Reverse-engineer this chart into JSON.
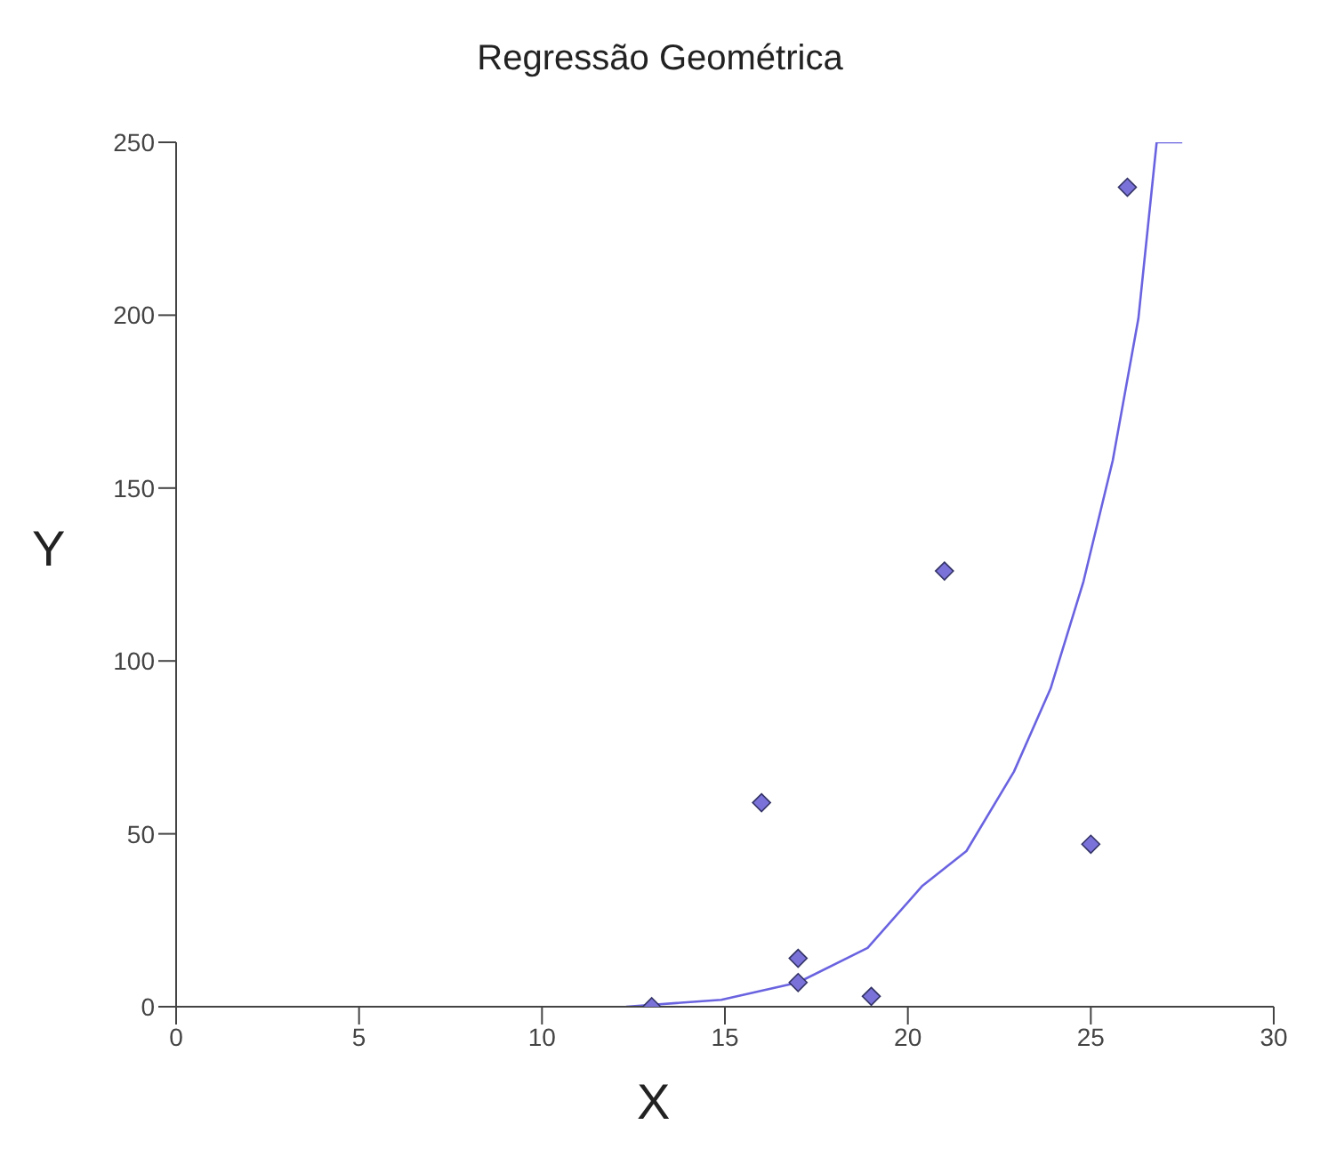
{
  "chart_data": {
    "type": "scatter",
    "title": "Regressão Geométrica",
    "xlabel": "X",
    "ylabel": "Y",
    "xlim": [
      0,
      30
    ],
    "xticks": [
      0,
      5,
      10,
      15,
      20,
      25,
      30
    ],
    "ylim": [
      0,
      250
    ],
    "yticks": [
      0,
      50,
      100,
      150,
      200,
      250
    ],
    "grid": false,
    "legend": false,
    "marker": "diamond",
    "series": [
      {
        "color": "#7b72d9",
        "x": [
          13,
          16,
          17,
          17,
          19,
          21,
          25,
          26
        ],
        "values": [
          0,
          59,
          14,
          7,
          3,
          126,
          47,
          237
        ]
      },
      {
        "type": "line",
        "color": "#6a63e0",
        "marker": "none",
        "x": [
          12.3,
          14.9,
          17,
          18.9,
          20.4,
          21.6,
          22.9,
          23.9,
          24.8,
          25.6,
          26.3,
          26.8,
          27.5
        ],
        "values": [
          0,
          2,
          7,
          17,
          35,
          45,
          68,
          92,
          123,
          158,
          199,
          250,
          250
        ]
      }
    ]
  }
}
